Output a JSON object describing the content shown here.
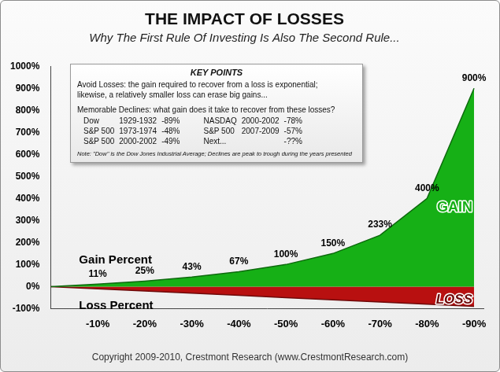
{
  "chart_data": {
    "type": "area",
    "title": "THE IMPACT OF LOSSES",
    "subtitle": "Why The First Rule Of Investing Is Also The Second Rule...",
    "x": [
      0,
      -10,
      -20,
      -30,
      -40,
      -50,
      -60,
      -70,
      -80,
      -90
    ],
    "series": [
      {
        "name": "GAIN",
        "color": "#16b016",
        "values": [
          0,
          11,
          25,
          43,
          67,
          100,
          150,
          233,
          400,
          900
        ],
        "value_labels": [
          null,
          "11%",
          "25%",
          "43%",
          "67%",
          "100%",
          "150%",
          "233%",
          "400%",
          "900%"
        ]
      },
      {
        "name": "LOSS",
        "color": "#b81010",
        "values": [
          0,
          -10,
          -20,
          -30,
          -40,
          -50,
          -60,
          -70,
          -80,
          -90
        ]
      }
    ],
    "xlim": [
      0,
      -92
    ],
    "xticks": [
      {
        "value": -10,
        "label": "-10%"
      },
      {
        "value": -20,
        "label": "-20%"
      },
      {
        "value": -30,
        "label": "-30%"
      },
      {
        "value": -40,
        "label": "-40%"
      },
      {
        "value": -50,
        "label": "-50%"
      },
      {
        "value": -60,
        "label": "-60%"
      },
      {
        "value": -70,
        "label": "-70%"
      },
      {
        "value": -80,
        "label": "-80%"
      },
      {
        "value": -90,
        "label": "-90%"
      }
    ],
    "ylim": [
      -100,
      1000
    ],
    "yticks": [
      {
        "value": -100,
        "label": "-100%"
      },
      {
        "value": 0,
        "label": "0%"
      },
      {
        "value": 100,
        "label": "100%"
      },
      {
        "value": 200,
        "label": "200%"
      },
      {
        "value": 300,
        "label": "300%"
      },
      {
        "value": 400,
        "label": "400%"
      },
      {
        "value": 500,
        "label": "500%"
      },
      {
        "value": 600,
        "label": "600%"
      },
      {
        "value": 700,
        "label": "700%"
      },
      {
        "value": 800,
        "label": "800%"
      },
      {
        "value": 900,
        "label": "900%"
      },
      {
        "value": 1000,
        "label": "1000%"
      }
    ],
    "grid": false,
    "data_labels": true,
    "annotations": {
      "gain_axis": "Gain Percent",
      "loss_axis": "Loss Percent"
    },
    "key_points": {
      "title": "KEY POINTS",
      "intro": [
        "Avoid Losses:  the gain required to recover from a loss is exponential;",
        "likewise, a relatively smaller loss can erase big gains..."
      ],
      "declines_heading": "Memorable Declines:  what gain does it take to recover from these losses?",
      "declines": [
        {
          "index": "Dow",
          "years": "1929-1932",
          "decline": "-89%"
        },
        {
          "index": "S&P 500",
          "years": "1973-1974",
          "decline": "-48%"
        },
        {
          "index": "S&P 500",
          "years": "2000-2002",
          "decline": "-49%"
        },
        {
          "index": "NASDAQ",
          "years": "2000-2002",
          "decline": "-78%"
        },
        {
          "index": "S&P 500",
          "years": "2007-2009",
          "decline": "-57%"
        },
        {
          "index": "Next...",
          "decline": "-??%"
        }
      ],
      "note": "Note: \"Dow\" is the Dow Jones Industrial Average; Declines are peak to trough during the years presented"
    },
    "footer": "Copyright 2009-2010, Crestmont Research (www.CrestmontResearch.com)"
  }
}
